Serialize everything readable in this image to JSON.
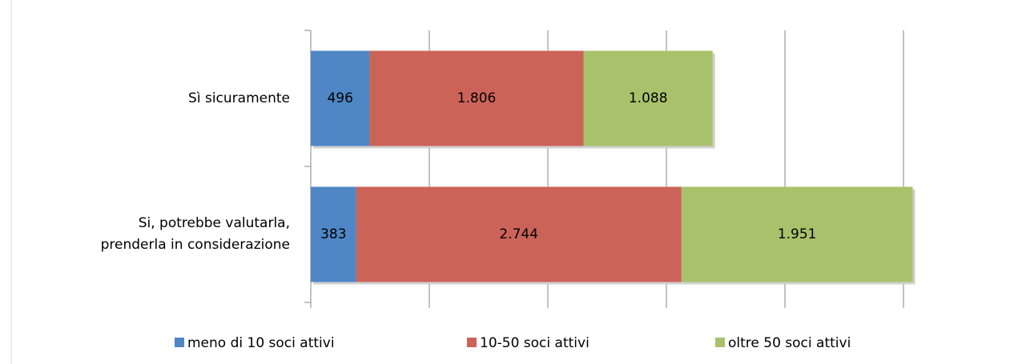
{
  "chart_data": {
    "type": "stacked-barh",
    "categories": [
      "Sì sicuramente",
      "Si, potrebbe valutarla, prenderla in considerazione"
    ],
    "series": [
      {
        "name": "meno di 10 soci attivi",
        "color": "#4e86c6",
        "values": [
          496,
          383
        ],
        "value_labels": [
          "496",
          "383"
        ]
      },
      {
        "name": "10-50 soci attivi",
        "color": "#cc6359",
        "values": [
          1806,
          2744
        ],
        "value_labels": [
          "1.806",
          "2.744"
        ]
      },
      {
        "name": "oltre 50 soci attivi",
        "color": "#a8c26b",
        "values": [
          1088,
          1951
        ],
        "value_labels": [
          "1.088",
          "1.951"
        ]
      }
    ],
    "xlim": [
      0,
      5000
    ],
    "xticks": [
      0,
      1000,
      2000,
      3000,
      4000,
      5000
    ],
    "grid": true,
    "legend": "bottom"
  }
}
